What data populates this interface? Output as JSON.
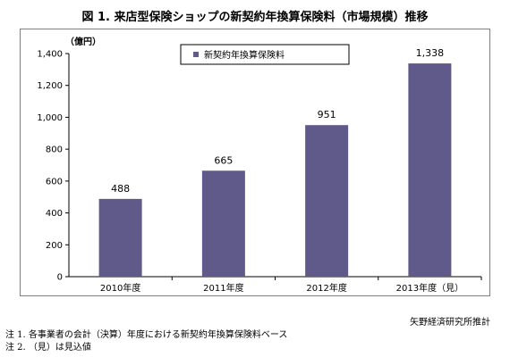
{
  "title": "図 1. 来店型保険ショップの新契約年換算保険料（市場規模）推移",
  "source": "矢野経済研究所推計",
  "notes": [
    "注 1. 各事業者の会計（決算）年度における新契約年換算保険料ベース",
    "注 2. （見）は見込値"
  ],
  "colors": {
    "bar": "#5f5a8a",
    "axis": "#000000",
    "frame": "#7f7f7f"
  },
  "chart_data": {
    "type": "bar",
    "title": "図 1. 来店型保険ショップの新契約年換算保険料（市場規模）推移",
    "unit_label": "（億円）",
    "categories": [
      "2010年度",
      "2011年度",
      "2012年度",
      "2013年度（見）"
    ],
    "series": [
      {
        "name": "新契約年換算保険料",
        "values": [
          488,
          665,
          951,
          1338
        ]
      }
    ],
    "data_labels": [
      "488",
      "665",
      "951",
      "1,338"
    ],
    "yticks": [
      "0",
      "200",
      "400",
      "600",
      "800",
      "1,000",
      "1,200",
      "1,400"
    ],
    "ylim": [
      0,
      1400
    ],
    "grid": false,
    "legend_position": "top-center"
  }
}
